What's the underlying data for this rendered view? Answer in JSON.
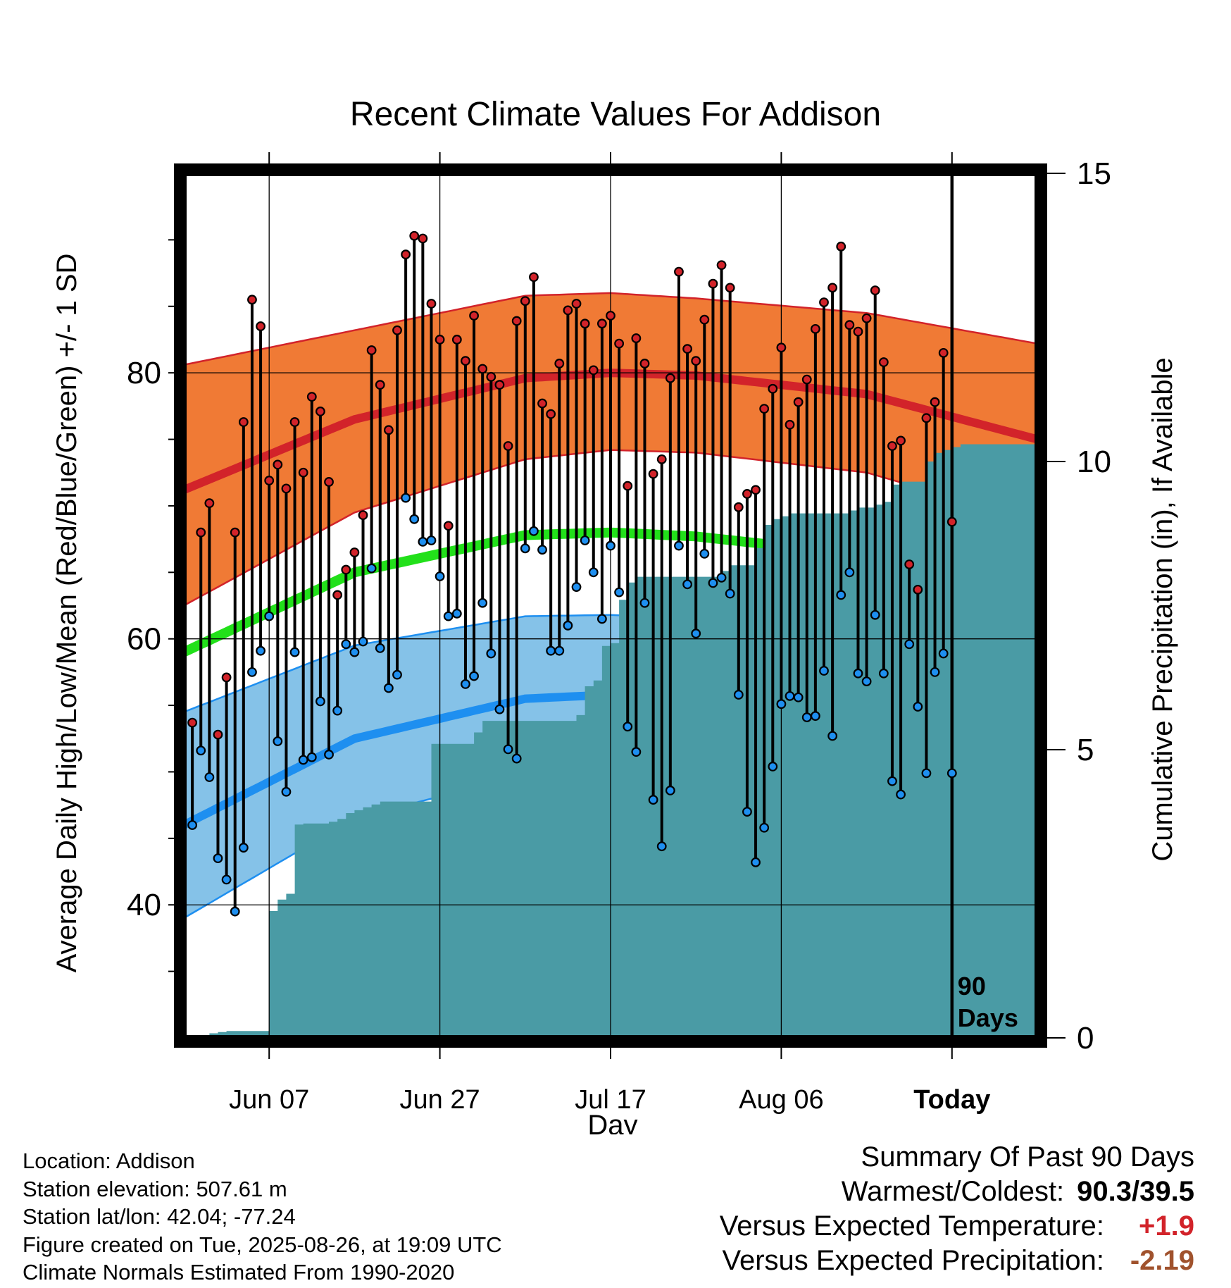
{
  "title": "Recent Climate Values For Addison",
  "chart_data": {
    "type": "line",
    "x": {
      "label": "Day",
      "start": "2025-05-29",
      "ticks": [
        {
          "date": "2025-06-07",
          "label": "Jun 07"
        },
        {
          "date": "2025-06-27",
          "label": "Jun 27"
        },
        {
          "date": "2025-07-17",
          "label": "Jul 17"
        },
        {
          "date": "2025-08-06",
          "label": "Aug 06"
        },
        {
          "date": "2025-08-26",
          "label": "Today"
        }
      ],
      "range": [
        "2025-05-28",
        "2025-09-05"
      ]
    },
    "y_left": {
      "label": "Average Daily High/Low/Mean (Red/Blue/Green) +/- 1 SD",
      "range": [
        30,
        95
      ],
      "ticks": [
        40,
        60,
        80
      ]
    },
    "y_right": {
      "label": "Cumulative Precipitation (in), If Available",
      "range": [
        0,
        15
      ],
      "ticks": [
        0,
        5,
        10,
        15
      ]
    },
    "today_marker": {
      "date": "2025-08-26",
      "label": "90\nDays"
    },
    "grid": true,
    "normals": {
      "x": [
        "2025-05-28",
        "2025-06-17",
        "2025-07-07",
        "2025-07-17",
        "2025-07-27",
        "2025-08-16",
        "2025-09-05"
      ],
      "high_mean": [
        71.2,
        76.5,
        79.6,
        80.0,
        79.8,
        78.4,
        75.0
      ],
      "high_upper": [
        80.6,
        83.2,
        85.8,
        86.0,
        85.6,
        84.5,
        82.2
      ],
      "high_lower": [
        62.5,
        69.5,
        73.5,
        74.2,
        74.0,
        72.5,
        68.8
      ],
      "mean_mean": [
        59.0,
        65.0,
        67.8,
        68.0,
        67.7,
        66.3,
        63.0
      ],
      "low_mean": [
        46.0,
        52.5,
        55.5,
        55.8,
        55.5,
        54.0,
        50.5
      ],
      "low_upper": [
        54.5,
        59.5,
        61.7,
        61.8,
        61.5,
        60.3,
        58.0
      ],
      "low_lower": [
        39.0,
        46.5,
        49.8,
        50.0,
        49.8,
        48.0,
        44.5
      ]
    },
    "series": [
      {
        "name": "Daily High",
        "values": [
          53.7,
          68.0,
          70.2,
          52.8,
          57.1,
          68.0,
          76.3,
          85.5,
          83.5,
          71.9,
          73.1,
          71.3,
          76.3,
          72.5,
          78.2,
          77.1,
          71.8,
          63.3,
          65.2,
          66.5,
          69.3,
          81.7,
          79.1,
          75.7,
          83.2,
          88.9,
          90.3,
          90.1,
          85.2,
          82.5,
          68.5,
          82.5,
          80.9,
          84.3,
          80.3,
          79.7,
          79.1,
          74.5,
          83.9,
          85.4,
          87.2,
          77.7,
          76.9,
          80.7,
          84.7,
          85.2,
          83.7,
          80.2,
          83.7,
          84.3,
          82.2,
          71.5,
          82.6,
          80.7,
          72.4,
          73.5,
          79.6,
          87.6,
          81.8,
          80.9,
          84.0,
          86.7,
          88.1,
          86.4,
          69.9,
          70.9,
          71.2,
          77.3,
          78.8,
          81.9,
          76.1,
          77.8,
          79.5,
          83.3,
          85.3,
          86.4,
          89.5,
          83.6,
          83.1,
          84.1,
          86.2,
          80.8,
          74.5,
          74.9,
          65.6,
          63.7,
          76.6,
          77.8,
          81.5,
          68.8
        ]
      },
      {
        "name": "Daily Low",
        "values": [
          46.0,
          51.6,
          49.6,
          43.5,
          41.9,
          39.5,
          44.3,
          57.5,
          59.1,
          61.7,
          52.3,
          48.5,
          59.0,
          50.9,
          51.1,
          55.3,
          51.3,
          54.6,
          59.6,
          59.0,
          59.8,
          65.3,
          59.3,
          56.3,
          57.3,
          70.6,
          69.0,
          67.3,
          67.4,
          64.7,
          61.7,
          61.9,
          56.6,
          57.2,
          62.7,
          58.9,
          54.7,
          51.7,
          51.0,
          66.8,
          68.1,
          66.7,
          59.1,
          59.1,
          61.0,
          63.9,
          67.4,
          65.0,
          61.5,
          67.0,
          63.5,
          53.4,
          51.5,
          62.7,
          47.9,
          44.4,
          48.6,
          67.0,
          64.1,
          60.4,
          66.4,
          64.2,
          64.6,
          63.4,
          55.8,
          47.0,
          43.2,
          45.8,
          50.4,
          55.1,
          55.7,
          55.6,
          54.1,
          54.2,
          57.6,
          52.7,
          63.3,
          65.0,
          57.4,
          56.8,
          61.8,
          57.4,
          49.3,
          48.3,
          59.6,
          54.9,
          49.9,
          57.5,
          58.9,
          49.9
        ]
      },
      {
        "name": "Cumulative Precipitation",
        "values": [
          0.0,
          0.05,
          0.08,
          0.1,
          0.12,
          0.12,
          0.12,
          0.12,
          0.12,
          2.2,
          2.4,
          2.5,
          3.7,
          3.72,
          3.72,
          3.72,
          3.75,
          3.8,
          3.9,
          3.95,
          4.0,
          4.05,
          4.1,
          4.1,
          4.1,
          4.1,
          4.1,
          4.1,
          5.1,
          5.1,
          5.1,
          5.1,
          5.1,
          5.3,
          5.5,
          5.5,
          5.5,
          5.5,
          5.5,
          5.5,
          5.5,
          5.5,
          5.5,
          5.5,
          5.5,
          5.6,
          6.1,
          6.2,
          6.8,
          6.85,
          7.6,
          7.9,
          8.0,
          8.0,
          8.0,
          8.0,
          8.0,
          8.0,
          8.0,
          8.0,
          8.0,
          8.0,
          8.1,
          8.2,
          8.2,
          8.2,
          8.5,
          8.9,
          9.0,
          9.05,
          9.1,
          9.1,
          9.1,
          9.1,
          9.1,
          9.1,
          9.1,
          9.15,
          9.2,
          9.2,
          9.25,
          9.3,
          9.6,
          9.65,
          9.65,
          9.65,
          10.0,
          10.15,
          10.2,
          10.25,
          10.3,
          10.3,
          10.3,
          10.3,
          10.3,
          10.3,
          10.3,
          10.3,
          10.3,
          10.3
        ]
      }
    ]
  },
  "info": {
    "location": "Location: Addison",
    "elevation": "Station elevation: 507.61 m",
    "latlon": "Station lat/lon: 42.04; -77.24",
    "created": "Figure created on Tue, 2025-08-26, at 19:09 UTC",
    "normals": "Climate Normals Estimated From 1990-2020"
  },
  "summary": {
    "heading": "Summary Of Past 90 Days",
    "warm_cold_label": "Warmest/Coldest:",
    "warm_cold_value": "90.3/39.5",
    "temp_label": "Versus Expected Temperature:",
    "temp_value": "+1.9",
    "precip_label": "Versus Expected Precipitation:",
    "precip_value": "-2.19"
  },
  "colors": {
    "high_band": "#f07a35",
    "high_line": "#d2232a",
    "mean_line": "#22e01a",
    "low_band": "#85c2e8",
    "low_line": "#1e8ff0",
    "precip": "#4a9ba5",
    "temp_positive": "#d2232a",
    "precip_negative": "#a0522d"
  }
}
